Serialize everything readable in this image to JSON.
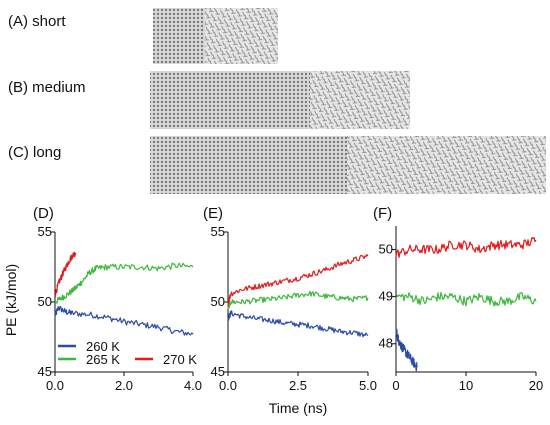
{
  "snapshots": [
    {
      "label": "(A) short"
    },
    {
      "label": "(B) medium"
    },
    {
      "label": "(C) long"
    }
  ],
  "legend": [
    {
      "name": "260 K",
      "color": "#2b4ba8"
    },
    {
      "name": "265 K",
      "color": "#3cb83c"
    },
    {
      "name": "270 K",
      "color": "#e21a1a"
    }
  ],
  "chart_data": [
    {
      "type": "line",
      "panel": "(D)",
      "ylabel": "PE (kJ/mol)",
      "xlim": [
        0.0,
        4.0
      ],
      "ylim": [
        45,
        55
      ],
      "xticks": [
        "0.0",
        "2.0",
        "4.0"
      ],
      "yticks": [
        "45",
        "50",
        "55"
      ],
      "series": [
        {
          "name": "260 K",
          "color": "#2b4ba8",
          "x": [
            0.0,
            0.1,
            0.3,
            0.5,
            1.0,
            1.5,
            2.0,
            2.5,
            3.0,
            3.5,
            4.0
          ],
          "y": [
            49.0,
            49.6,
            49.3,
            49.2,
            49.1,
            48.9,
            48.6,
            48.4,
            48.2,
            47.9,
            47.7
          ]
        },
        {
          "name": "265 K",
          "color": "#3cb83c",
          "x": [
            0.0,
            0.2,
            0.4,
            0.6,
            0.8,
            1.0,
            1.2,
            1.5,
            2.0,
            2.5,
            3.0,
            3.5,
            4.0
          ],
          "y": [
            50.0,
            50.3,
            50.6,
            51.0,
            51.5,
            52.1,
            52.4,
            52.5,
            52.5,
            52.5,
            52.4,
            52.6,
            52.5
          ]
        },
        {
          "name": "270 K",
          "color": "#e21a1a",
          "x": [
            0.0,
            0.1,
            0.2,
            0.3,
            0.4,
            0.5,
            0.6
          ],
          "y": [
            50.5,
            51.3,
            51.9,
            52.4,
            52.9,
            53.3,
            53.5
          ]
        }
      ]
    },
    {
      "type": "line",
      "panel": "(E)",
      "xlabel": "Time (ns)",
      "xlim": [
        0.0,
        5.0
      ],
      "ylim": [
        45,
        55
      ],
      "xticks": [
        "0.0",
        "2.5",
        "5.0"
      ],
      "yticks": [
        "45",
        "50",
        "55"
      ],
      "series": [
        {
          "name": "260 K",
          "color": "#2b4ba8",
          "x": [
            0.0,
            0.1,
            0.5,
            1.0,
            1.5,
            2.0,
            2.5,
            3.0,
            3.5,
            4.0,
            4.5,
            5.0
          ],
          "y": [
            48.8,
            49.2,
            49.0,
            48.8,
            48.7,
            48.5,
            48.4,
            48.3,
            48.1,
            47.9,
            47.8,
            47.6
          ]
        },
        {
          "name": "265 K",
          "color": "#3cb83c",
          "x": [
            0.0,
            0.1,
            0.5,
            1.0,
            1.5,
            2.0,
            2.5,
            3.0,
            3.5,
            4.0,
            4.5,
            5.0
          ],
          "y": [
            49.6,
            50.0,
            50.0,
            50.1,
            50.2,
            50.3,
            50.5,
            50.6,
            50.4,
            50.3,
            50.2,
            50.3
          ]
        },
        {
          "name": "270 K",
          "color": "#e21a1a",
          "x": [
            0.0,
            0.1,
            0.5,
            1.0,
            1.5,
            2.0,
            2.5,
            3.0,
            3.5,
            4.0,
            4.5,
            5.0
          ],
          "y": [
            49.9,
            50.6,
            50.9,
            51.1,
            51.3,
            51.5,
            51.7,
            52.0,
            52.3,
            52.7,
            53.0,
            53.3
          ]
        }
      ]
    },
    {
      "type": "line",
      "panel": "(F)",
      "xlim": [
        0,
        20
      ],
      "ylim": [
        47.4,
        50.5
      ],
      "xticks": [
        "0",
        "10",
        "20"
      ],
      "yticks": [
        "48",
        "49",
        "50"
      ],
      "series": [
        {
          "name": "260 K",
          "color": "#2b4ba8",
          "x": [
            0.0,
            0.3,
            0.6,
            1.0,
            1.5,
            2.0,
            2.5,
            3.0
          ],
          "y": [
            48.3,
            48.1,
            48.0,
            47.9,
            47.8,
            47.7,
            47.6,
            47.5
          ]
        },
        {
          "name": "265 K",
          "color": "#3cb83c",
          "x": [
            0,
            2,
            4,
            6,
            8,
            10,
            12,
            14,
            16,
            18,
            20
          ],
          "y": [
            49.0,
            49.0,
            48.9,
            49.0,
            49.0,
            48.9,
            49.0,
            48.9,
            48.9,
            49.0,
            48.9
          ]
        },
        {
          "name": "270 K",
          "color": "#e21a1a",
          "x": [
            0,
            2,
            4,
            6,
            8,
            10,
            12,
            14,
            16,
            18,
            20
          ],
          "y": [
            49.9,
            50.0,
            50.0,
            50.0,
            50.1,
            50.1,
            50.0,
            50.1,
            50.1,
            50.1,
            50.2
          ]
        }
      ]
    }
  ]
}
